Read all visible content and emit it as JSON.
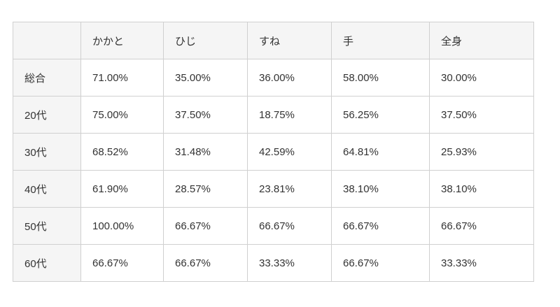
{
  "chart_data": {
    "type": "table",
    "title": "",
    "columns": [
      "",
      "かかと",
      "ひじ",
      "すね",
      "手",
      "全身"
    ],
    "rows": [
      {
        "label": "総合",
        "values": [
          "71.00%",
          "35.00%",
          "36.00%",
          "58.00%",
          "30.00%"
        ]
      },
      {
        "label": "20代",
        "values": [
          "75.00%",
          "37.50%",
          "18.75%",
          "56.25%",
          "37.50%"
        ]
      },
      {
        "label": "30代",
        "values": [
          "68.52%",
          "31.48%",
          "42.59%",
          "64.81%",
          "25.93%"
        ]
      },
      {
        "label": "40代",
        "values": [
          "61.90%",
          "28.57%",
          "23.81%",
          "38.10%",
          "38.10%"
        ]
      },
      {
        "label": "50代",
        "values": [
          "100.00%",
          "66.67%",
          "66.67%",
          "66.67%",
          "66.67%"
        ]
      },
      {
        "label": "60代",
        "values": [
          "66.67%",
          "66.67%",
          "33.33%",
          "66.67%",
          "33.33%"
        ]
      }
    ]
  },
  "colors": {
    "header_background": "#f5f5f5",
    "cell_background": "#ffffff",
    "border": "#d0d0d0",
    "text": "#333333",
    "page_background": "#ffffff"
  }
}
